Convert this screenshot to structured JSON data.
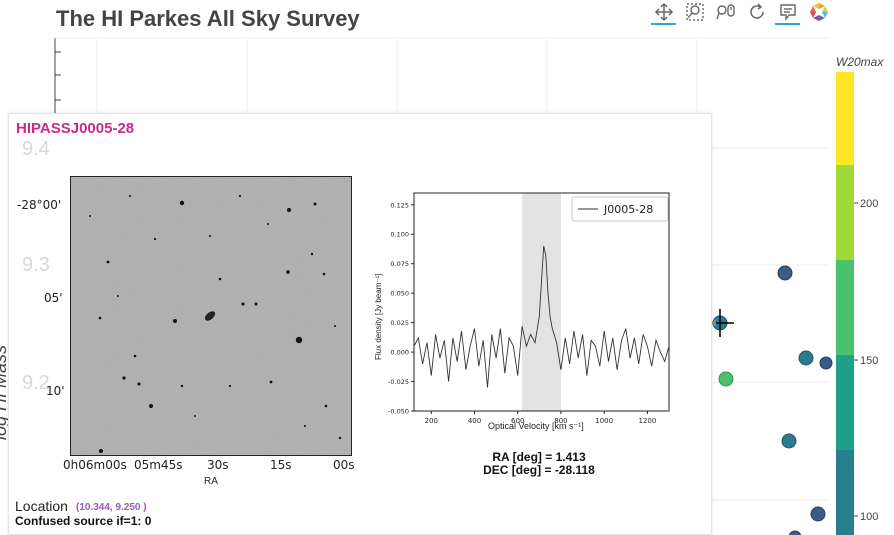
{
  "app": {
    "title": "The HI Parkes All Sky Survey"
  },
  "toolbar": {
    "tools": [
      {
        "name": "pan-tool",
        "icon": "move-arrows-icon",
        "active": true
      },
      {
        "name": "box-zoom-tool",
        "icon": "zoom-box-icon",
        "active": false
      },
      {
        "name": "wheel-zoom-tool",
        "icon": "wheel-zoom-icon",
        "active": false
      },
      {
        "name": "reset-tool",
        "icon": "reset-icon",
        "active": false
      },
      {
        "name": "hover-tool",
        "icon": "tooltip-icon",
        "active": true
      },
      {
        "name": "bokeh-logo",
        "icon": "bokeh-logo-icon",
        "active": false
      }
    ]
  },
  "main_plot": {
    "y_axis_label": "log HI Mass",
    "y_ticks": [
      "9.4",
      "9.3",
      "9.2"
    ],
    "colorbar": {
      "title": "W20max",
      "ticks": [
        "200",
        "150",
        "100"
      ],
      "colors": [
        "#fde725",
        "#a0da39",
        "#4ac16d",
        "#1fa187",
        "#277f8e"
      ]
    }
  },
  "tooltip": {
    "source_name": "HIPASSJ0005-28",
    "image": {
      "dec_ticks": [
        "-28°00'",
        "05'",
        "10'"
      ],
      "ra_ticks": [
        "0h06m00s",
        "05m45s",
        "30s",
        "15s",
        "00s"
      ],
      "xlabel": "RA"
    },
    "spectrum": {
      "legend": "J0005-28",
      "xlabel": "Optical Velocity [km s⁻¹]",
      "ylabel": "Flux density [Jy beam⁻¹]",
      "x_ticks": [
        "200",
        "400",
        "600",
        "800",
        "1000",
        "1200"
      ],
      "y_ticks": [
        "0.125",
        "0.100",
        "0.075",
        "0.050",
        "0.025",
        "0.000",
        "-0.025",
        "-0.050"
      ]
    },
    "ra_text": "RA [deg] = 1.413",
    "dec_text": "DEC [deg] = -28.118",
    "location_label": "Location",
    "location_value": "(10.344, 9.250 )",
    "confused_text": "Confused source if=1: 0"
  },
  "chart_data": {
    "type": "line",
    "title": "",
    "xlabel": "Optical Velocity [km s⁻¹]",
    "ylabel": "Flux density [Jy beam⁻¹]",
    "xlim": [
      120,
      1300
    ],
    "ylim": [
      -0.05,
      0.135
    ],
    "highlight_band": [
      620,
      800
    ],
    "series": [
      {
        "name": "J0005-28",
        "x": [
          120,
          140,
          160,
          180,
          200,
          220,
          240,
          260,
          280,
          300,
          320,
          340,
          360,
          380,
          400,
          420,
          440,
          460,
          480,
          500,
          520,
          540,
          560,
          580,
          600,
          620,
          640,
          660,
          680,
          700,
          710,
          720,
          730,
          740,
          750,
          760,
          780,
          800,
          820,
          840,
          860,
          880,
          900,
          920,
          940,
          960,
          980,
          1000,
          1020,
          1040,
          1060,
          1080,
          1100,
          1120,
          1140,
          1160,
          1180,
          1200,
          1220,
          1240,
          1260,
          1280,
          1300
        ],
        "y": [
          0.005,
          0.012,
          -0.01,
          0.008,
          -0.02,
          0.015,
          -0.005,
          0.01,
          -0.025,
          0.012,
          -0.008,
          0.018,
          -0.015,
          0.005,
          0.02,
          -0.012,
          0.01,
          -0.03,
          0.015,
          -0.005,
          0.02,
          -0.018,
          0.012,
          0.005,
          -0.02,
          0.022,
          0.005,
          0.015,
          0.008,
          0.03,
          0.06,
          0.09,
          0.082,
          0.05,
          0.03,
          0.02,
          0.008,
          -0.015,
          0.012,
          -0.01,
          0.018,
          -0.005,
          0.015,
          -0.02,
          0.01,
          0.005,
          -0.012,
          0.018,
          -0.008,
          0.012,
          -0.015,
          0.01,
          0.02,
          -0.005,
          0.012,
          -0.01,
          0.015,
          0.005,
          -0.012,
          0.01,
          0.0,
          -0.008,
          0.005
        ]
      }
    ]
  }
}
